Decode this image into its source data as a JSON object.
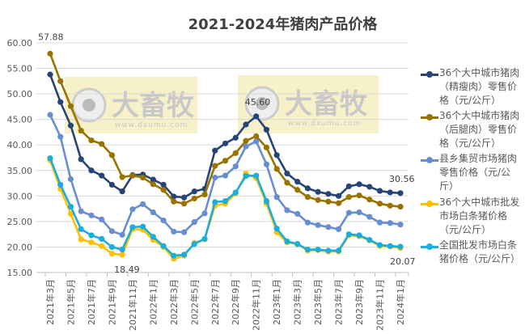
{
  "chart_data": {
    "type": "line",
    "title": "2021-2024年猪肉产品价格",
    "xlabel": "",
    "ylabel": "",
    "ylim": [
      15,
      60
    ],
    "yticks": [
      "15.00",
      "20.00",
      "25.00",
      "30.00",
      "35.00",
      "40.00",
      "45.00",
      "50.00",
      "55.00",
      "60.00"
    ],
    "grid": true,
    "legend_position": "right",
    "x": [
      "2021年3月",
      "2021年4月",
      "2021年5月",
      "2021年6月",
      "2021年7月",
      "2021年8月",
      "2021年9月",
      "2021年10月",
      "2021年11月",
      "2021年12月",
      "2022年1月",
      "2022年2月",
      "2022年3月",
      "2022年4月",
      "2022年5月",
      "2022年6月",
      "2022年7月",
      "2022年8月",
      "2022年9月",
      "2022年10月",
      "2022年11月",
      "2022年12月",
      "2023年1月",
      "2023年2月",
      "2023年3月",
      "2023年4月",
      "2023年5月",
      "2023年6月",
      "2023年7月",
      "2023年8月",
      "2023年9月",
      "2023年10月",
      "2023年11月",
      "2023年12月",
      "2024年1月"
    ],
    "xtick_labels": [
      "2021年3月",
      "2021年5月",
      "2021年7月",
      "2021年9月",
      "2021年11月",
      "2022年1月",
      "2022年3月",
      "2022年5月",
      "2022年7月",
      "2022年9月",
      "2022年11月",
      "2023年1月",
      "2023年3月",
      "2023年5月",
      "2023年7月",
      "2023年9月",
      "2023年11月",
      "2024年1月"
    ],
    "series": [
      {
        "name": "36个大中城市猪肉（精瘦肉）零售价格（元/公斤）",
        "color": "#264478",
        "values": [
          53.8,
          48.4,
          43.8,
          37.2,
          35.0,
          34.0,
          32.2,
          30.9,
          34.1,
          34.2,
          33.2,
          32.2,
          29.9,
          29.7,
          30.9,
          31.4,
          38.9,
          40.3,
          41.4,
          44.0,
          45.6,
          43.0,
          38.0,
          34.4,
          32.8,
          31.5,
          30.8,
          30.4,
          30.0,
          31.9,
          32.3,
          31.8,
          31.0,
          30.7,
          30.56
        ]
      },
      {
        "name": "36个大中城市猪肉（后腿肉）零售价格（元/公斤）",
        "color": "#997300",
        "values": [
          57.88,
          52.5,
          47.6,
          42.8,
          40.9,
          40.2,
          38.0,
          33.7,
          34.0,
          33.6,
          32.3,
          31.2,
          28.9,
          28.5,
          29.5,
          30.3,
          35.9,
          36.9,
          38.4,
          40.8,
          41.7,
          39.5,
          35.3,
          32.6,
          31.2,
          29.8,
          29.2,
          28.9,
          28.6,
          29.8,
          30.1,
          29.3,
          28.5,
          28.1,
          27.9
        ]
      },
      {
        "name": "县乡集贸市场猪肉零售价格（元/公斤）",
        "color": "#698ED0",
        "values": [
          45.9,
          41.6,
          33.3,
          27.0,
          26.2,
          25.4,
          23.1,
          22.4,
          27.4,
          28.4,
          26.8,
          25.2,
          23.0,
          22.9,
          24.9,
          26.6,
          33.6,
          34.0,
          35.8,
          39.7,
          40.7,
          36.2,
          29.8,
          27.2,
          26.5,
          24.8,
          24.3,
          23.9,
          23.5,
          26.7,
          26.8,
          25.9,
          24.8,
          24.7,
          24.4
        ]
      },
      {
        "name": "36个大中城市批发市场白条猪价格（元/公斤）",
        "color": "#FFC000",
        "values": [
          37.0,
          31.4,
          26.5,
          21.5,
          20.9,
          20.2,
          18.7,
          18.49,
          23.5,
          23.4,
          21.4,
          20.0,
          17.7,
          18.3,
          20.8,
          21.5,
          28.1,
          28.5,
          30.5,
          34.4,
          33.5,
          28.5,
          22.9,
          20.9,
          20.6,
          19.3,
          19.4,
          19.1,
          19.1,
          22.3,
          22.1,
          21.3,
          20.2,
          20.1,
          19.8
        ]
      },
      {
        "name": "全国批发市场白条猪价格（元/公斤）",
        "color": "#1AAEDF",
        "values": [
          37.4,
          32.2,
          27.9,
          23.5,
          22.3,
          21.6,
          20.0,
          19.5,
          23.9,
          24.0,
          22.0,
          20.2,
          18.3,
          18.5,
          20.6,
          21.6,
          28.8,
          29.0,
          30.7,
          33.9,
          34.0,
          29.0,
          23.6,
          21.1,
          20.6,
          19.5,
          19.5,
          19.3,
          19.3,
          22.5,
          22.3,
          21.4,
          20.4,
          20.2,
          20.07
        ]
      }
    ],
    "annotations": [
      {
        "text": "57.88",
        "series": 1,
        "index": 0
      },
      {
        "text": "18.49",
        "series": 3,
        "index": 7
      },
      {
        "text": "45.60",
        "series": 0,
        "index": 20
      },
      {
        "text": "30.56",
        "series": 0,
        "index": 34
      },
      {
        "text": "20.07",
        "series": 4,
        "index": 34
      }
    ]
  },
  "watermark": {
    "brand": "大畜牧",
    "url": "www.dxumu.com"
  }
}
